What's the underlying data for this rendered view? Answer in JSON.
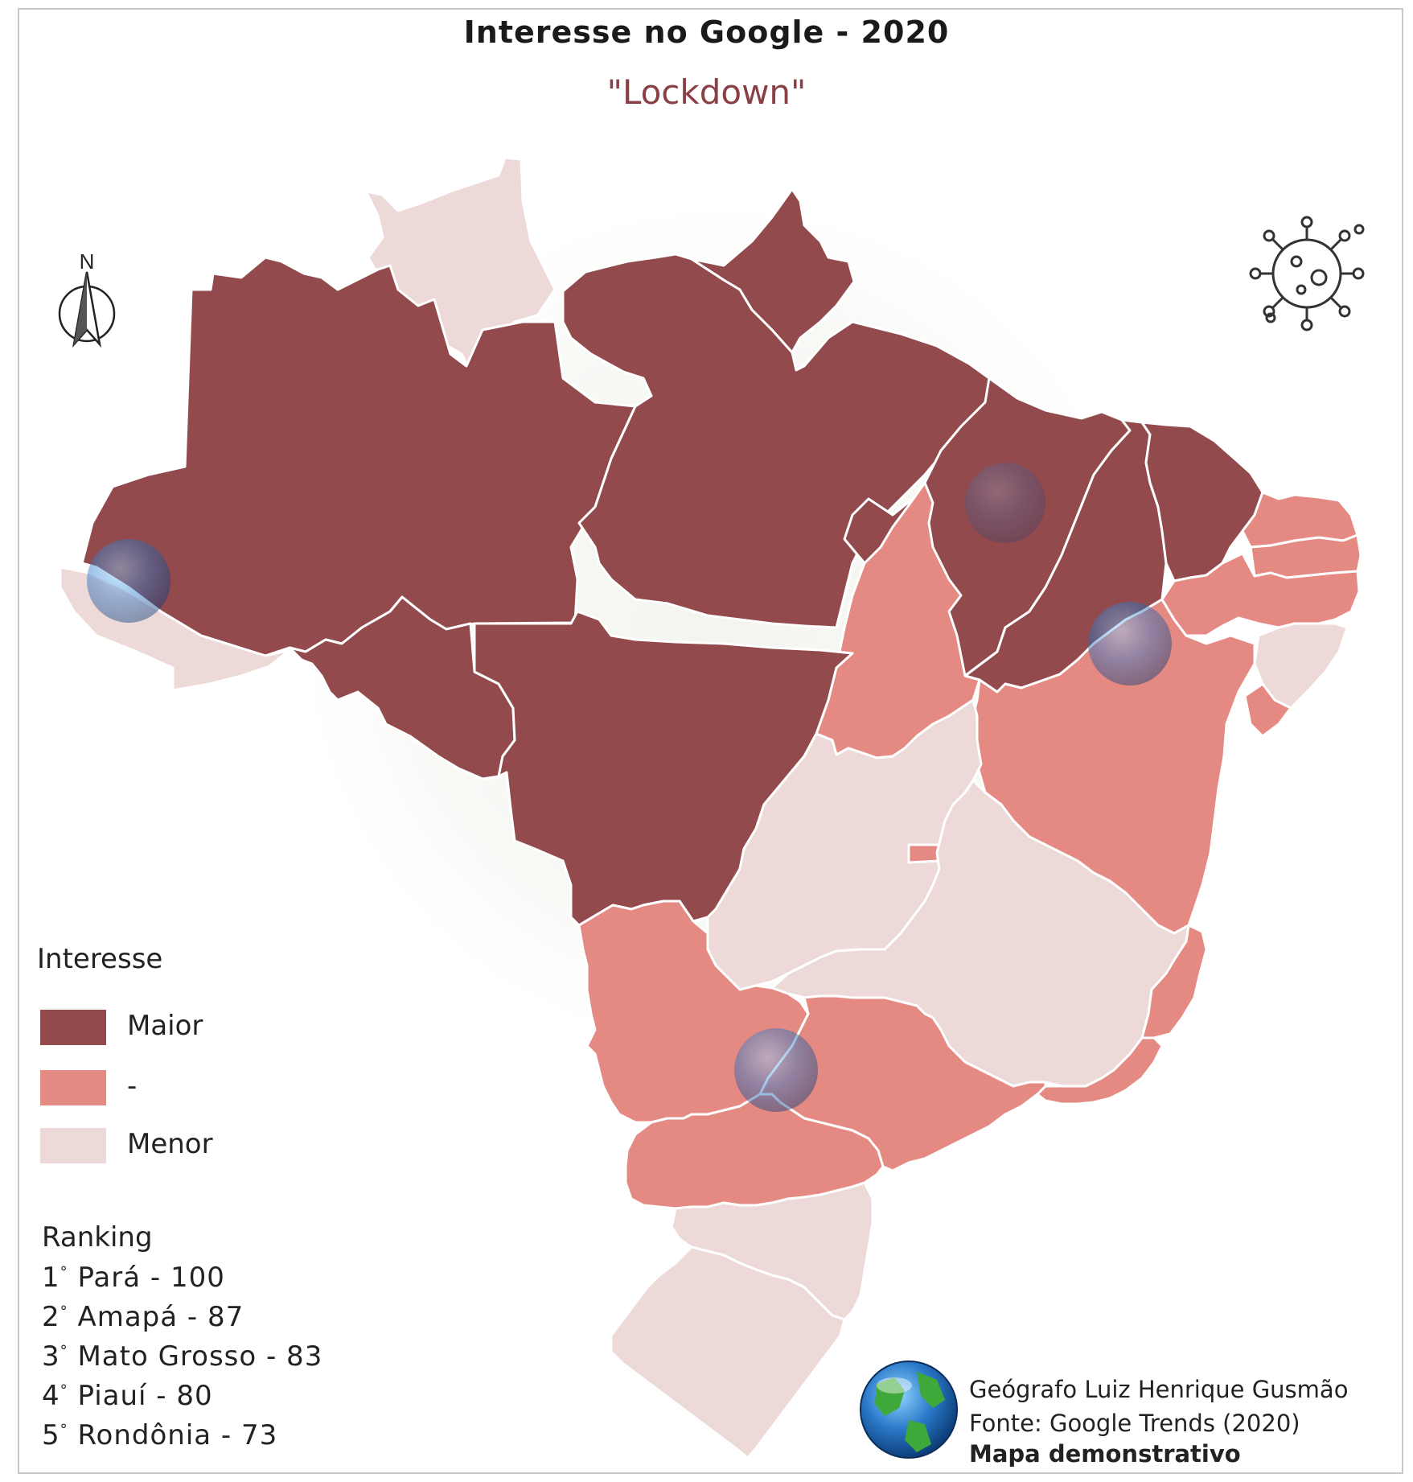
{
  "title": "Interesse no Google - 2020",
  "subtitle": "\"Lockdown\"",
  "north_label": "N",
  "legend": {
    "title": "Interesse",
    "items": [
      {
        "label": "Maior",
        "color": "#934a4d"
      },
      {
        "label": "-",
        "color": "#e58a82"
      },
      {
        "label": "Menor",
        "color": "#eed9d9"
      }
    ]
  },
  "ranking": {
    "title": "Ranking",
    "items": [
      {
        "pos": "1",
        "text": "Pará - 100"
      },
      {
        "pos": "2",
        "text": "Amapá - 87"
      },
      {
        "pos": "3",
        "text": "Mato Grosso - 83"
      },
      {
        "pos": "4",
        "text": "Piauí - 80"
      },
      {
        "pos": "5",
        "text": "Rondônia - 73"
      }
    ]
  },
  "credits": {
    "author": "Geógrafo Luiz Henrique Gusmão",
    "source": "Fonte: Google Trends (2020)",
    "note": "Mapa demonstrativo"
  },
  "colors": {
    "maior": "#934a4d",
    "medio": "#e58a82",
    "menor": "#eed9d9",
    "border": "#ffffff"
  },
  "icons": [
    "north-arrow-icon",
    "virus-icon",
    "globe-icon"
  ]
}
